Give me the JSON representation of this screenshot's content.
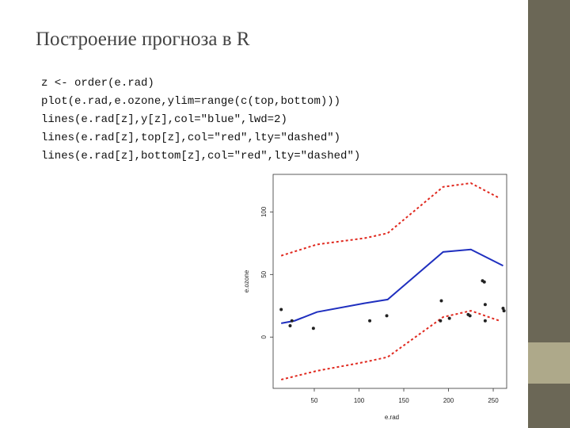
{
  "slide": {
    "title": "Построение прогноза в R",
    "code": [
      "z <- order(e.rad)",
      "plot(e.rad,e.ozone,ylim=range(c(top,bottom)))",
      "lines(e.rad[z],y[z],col=\"blue\",lwd=2)",
      "lines(e.rad[z],top[z],col=\"red\",lty=\"dashed\")",
      "lines(e.rad[z],bottom[z],col=\"red\",lty=\"dashed\")"
    ]
  },
  "chart_data": {
    "type": "line",
    "xlabel": "e.rad",
    "ylabel": "e.ozone",
    "xlim": [
      4,
      265
    ],
    "ylim": [
      -41,
      130
    ],
    "xticks": [
      50,
      100,
      150,
      200,
      250
    ],
    "yticks": [
      0,
      50,
      100
    ],
    "series": [
      {
        "color": "#1f2fbf",
        "dashed": false,
        "width": 2,
        "x": [
          13,
          28,
          53,
          106,
          132,
          194,
          225,
          261
        ],
        "values": [
          11,
          13,
          20,
          27,
          30,
          68,
          70,
          57
        ]
      },
      {
        "color": "#e0281e",
        "dashed": true,
        "width": 2,
        "x": [
          13,
          53,
          106,
          132,
          194,
          225,
          257
        ],
        "values": [
          65,
          74,
          79,
          83,
          120,
          123,
          111
        ]
      },
      {
        "color": "#e0281e",
        "dashed": true,
        "width": 2,
        "x": [
          13,
          53,
          106,
          132,
          194,
          225,
          257
        ],
        "values": [
          -34,
          -27,
          -20,
          -16,
          16,
          21,
          13
        ]
      }
    ],
    "points": {
      "color": "#222222",
      "x": [
        13,
        23,
        25,
        49,
        112,
        131,
        192,
        191,
        201,
        222,
        224,
        240,
        238,
        241,
        241,
        261,
        262
      ],
      "values": [
        22,
        9,
        13,
        7,
        13,
        17,
        29,
        13,
        15,
        18,
        17,
        44,
        45,
        26,
        13,
        23,
        21
      ]
    }
  }
}
